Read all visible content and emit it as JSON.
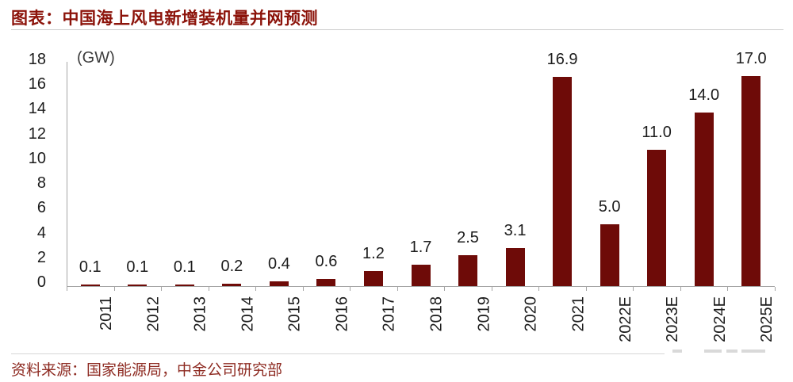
{
  "header": {
    "title": "图表：中国海上风电新增装机量并网预测"
  },
  "footer": {
    "source": "资料来源：国家能源局，中金公司研究部"
  },
  "chart_data": {
    "type": "bar",
    "title": "中国海上风电新增装机量并网预测",
    "unit_label": "(GW)",
    "categories": [
      "2011",
      "2012",
      "2013",
      "2014",
      "2015",
      "2016",
      "2017",
      "2018",
      "2019",
      "2020",
      "2021",
      "2022E",
      "2023E",
      "2024E",
      "2025E"
    ],
    "values": [
      0.1,
      0.1,
      0.1,
      0.2,
      0.4,
      0.6,
      1.2,
      1.7,
      2.5,
      3.1,
      16.9,
      5.0,
      11.0,
      14.0,
      17.0
    ],
    "value_labels": [
      "0.1",
      "0.1",
      "0.1",
      "0.2",
      "0.4",
      "0.6",
      "1.2",
      "1.7",
      "2.5",
      "3.1",
      "16.9",
      "5.0",
      "11.0",
      "14.0",
      "17.0"
    ],
    "yticks": [
      0,
      2,
      4,
      6,
      8,
      10,
      12,
      14,
      16,
      18
    ],
    "ylim": [
      0,
      18
    ],
    "grid": false,
    "legend": "none",
    "xlabel_rotation": -90,
    "bar_color": "#6e0b08",
    "text_color": "#1c1c1c",
    "axis_color": "#a6a6a6"
  },
  "colors": {
    "title": "#8c130a",
    "source": "#8e2b22",
    "divider": "#d6d6d6"
  }
}
